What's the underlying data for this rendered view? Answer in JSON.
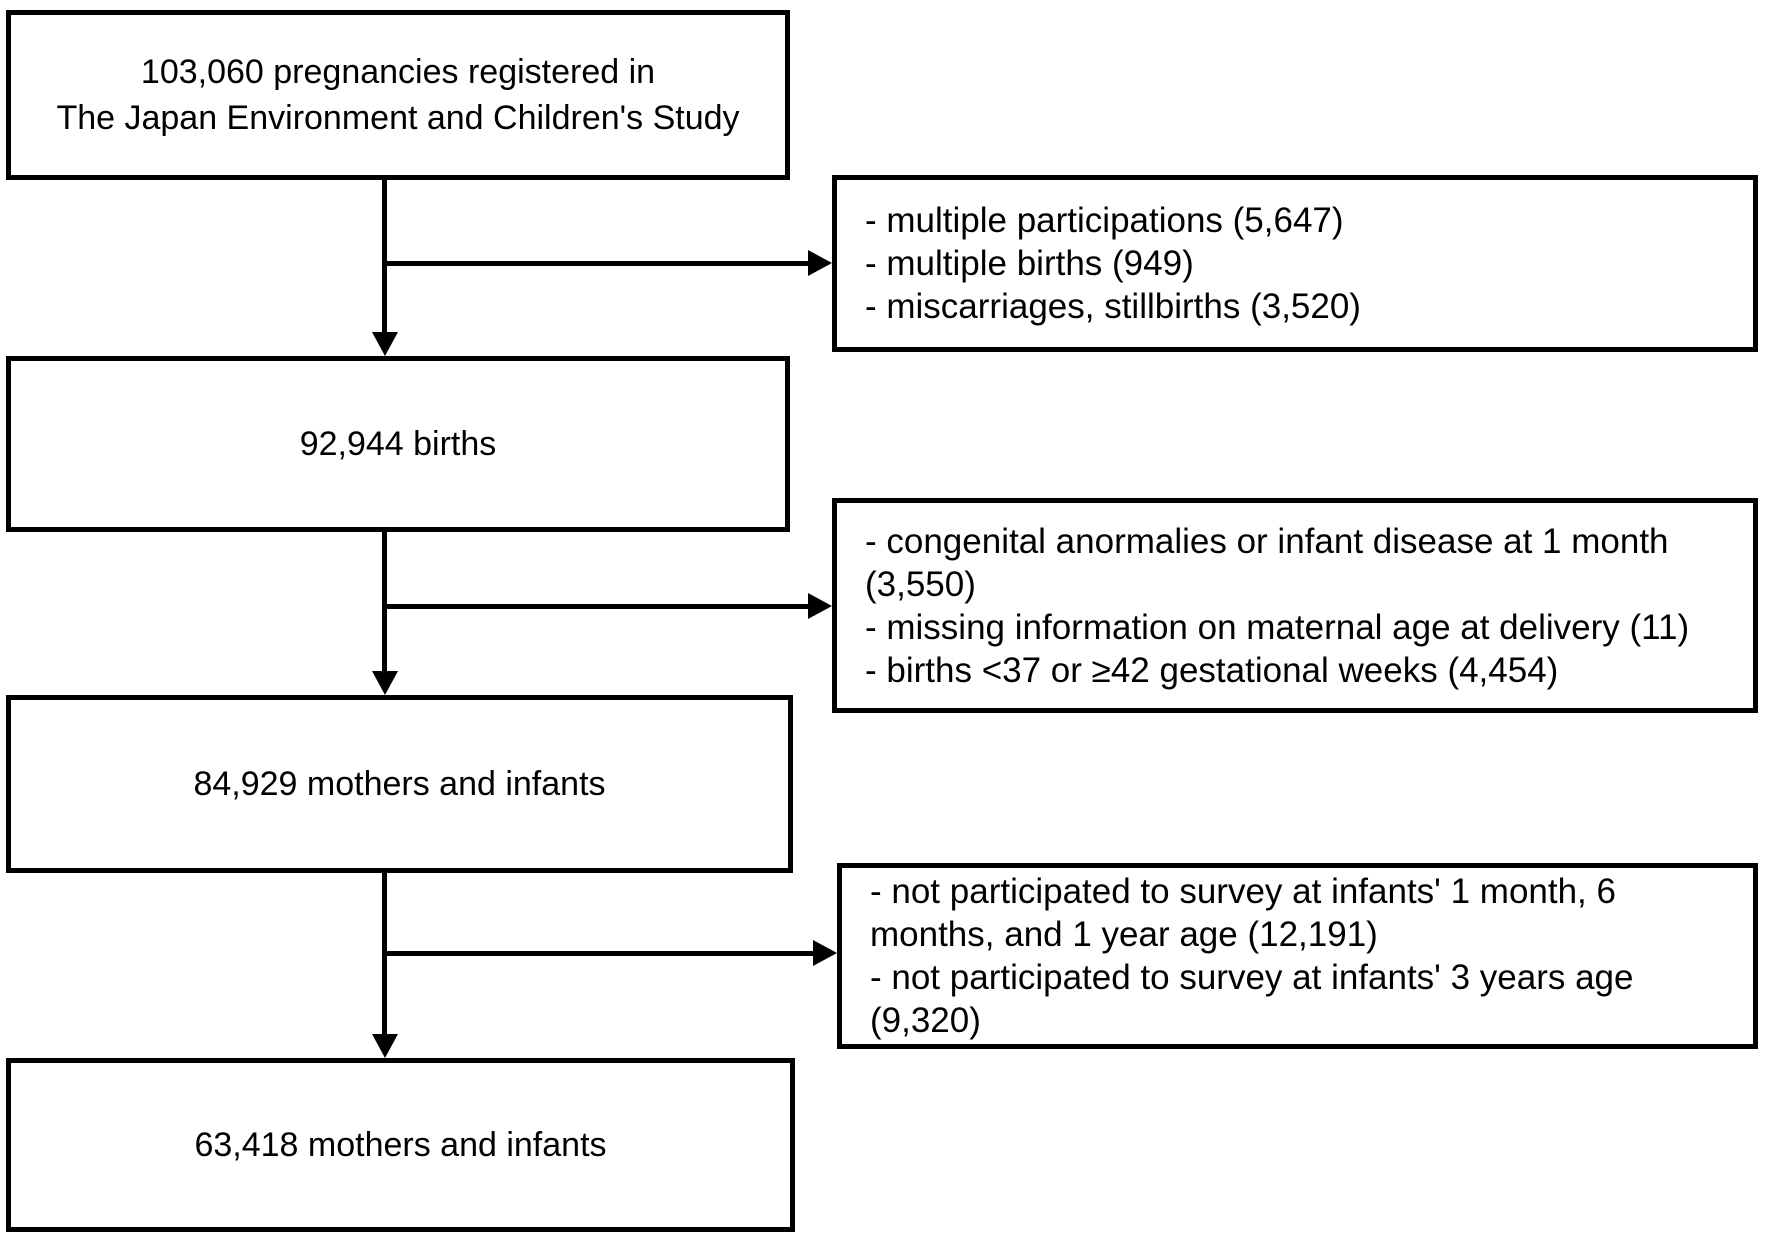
{
  "diagram": {
    "type": "flowchart",
    "background_color": "#ffffff",
    "line_color": "#000000",
    "main_boxes": [
      {
        "lines": [
          "103,060 pregnancies registered in",
          "The Japan Environment and Children's Study"
        ]
      },
      {
        "lines": [
          "92,944 births"
        ]
      },
      {
        "lines": [
          "84,929 mothers and infants"
        ]
      },
      {
        "lines": [
          "63,418 mothers and infants"
        ]
      }
    ],
    "exclusion_boxes": [
      {
        "items": [
          "- multiple participations (5,647)",
          "- multiple births (949)",
          "- miscarriages, stillbirths (3,520)"
        ]
      },
      {
        "items": [
          "- congenital anormalies or infant disease at 1 month (3,550)",
          "- missing information on maternal age at delivery (11)",
          "- births <37 or ≥42 gestational weeks (4,454)"
        ]
      },
      {
        "items": [
          "- not participated to survey at infants' 1 month, 6 months, and 1 year age (12,191)",
          "- not participated to survey at infants' 3 years age (9,320)"
        ]
      }
    ]
  }
}
